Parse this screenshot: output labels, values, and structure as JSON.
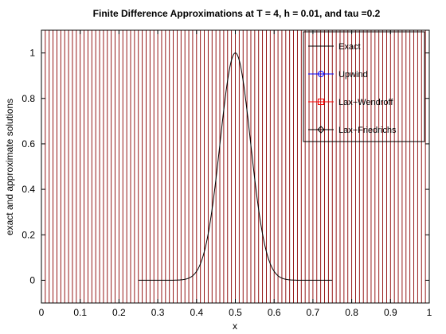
{
  "chart_data": {
    "type": "line",
    "title": "Finite Difference Approximations at T = 4, h = 0.01, and tau =0.2",
    "xlabel": "x",
    "ylabel": "exact and approximate solutions",
    "xlim": [
      0,
      1
    ],
    "ylim": [
      -0.1,
      1.1
    ],
    "x_ticks": [
      "0",
      "0.1",
      "0.2",
      "0.3",
      "0.4",
      "0.5",
      "0.6",
      "0.7",
      "0.8",
      "0.9",
      "1"
    ],
    "y_ticks": [
      "0",
      "0.2",
      "0.4",
      "0.6",
      "0.8",
      "1"
    ],
    "legend_position": "top-right",
    "exact": {
      "name": "Exact",
      "color": "#000000",
      "x_range": [
        0.25,
        0.75
      ],
      "center": 0.5,
      "peak": 1.0,
      "sigma": 0.0393
    },
    "series": [
      {
        "name": "Exact",
        "color": "#000000",
        "marker": "none",
        "style": "solid"
      },
      {
        "name": "Upwind",
        "color": "#0000ff",
        "marker": "circle",
        "style": "solid"
      },
      {
        "name": "Lax−Wendroff",
        "color": "#ff0000",
        "marker": "square",
        "style": "solid"
      },
      {
        "name": "Lax−Friedrichs",
        "color": "#000000",
        "marker": "diamond",
        "style": "solid"
      }
    ],
    "approximation_grid": {
      "x_start": 0,
      "x_end": 1,
      "h": 0.01,
      "color": "#8b0000"
    }
  }
}
